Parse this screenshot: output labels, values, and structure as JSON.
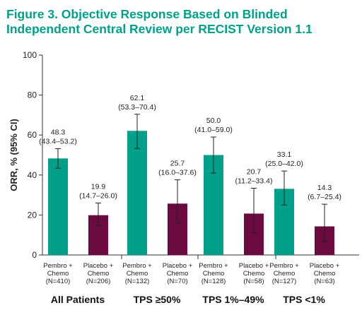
{
  "chart_data": {
    "type": "bar",
    "title": "Figure 3. Objective Response Based on Blinded Independent Central Review per RECIST Version 1.1",
    "ylabel": "ORR, % (95% CI)",
    "ylim": [
      0,
      100
    ],
    "yticks": [
      "0",
      "20",
      "40",
      "60",
      "80",
      "100"
    ],
    "colors": {
      "Pembro + Chemo": "#00a08a",
      "Placebo + Chemo": "#6b0a3e"
    },
    "categories": [
      "All Patients",
      "TPS ≥50%",
      "TPS 1%–49%",
      "TPS <1%"
    ],
    "series": [
      {
        "name": "Pembro + Chemo",
        "values": [
          48.3,
          62.1,
          50.0,
          33.1
        ],
        "value_labels": [
          "48.3",
          "62.1",
          "50.0",
          "33.1"
        ],
        "ci": [
          [
            43.4,
            53.2
          ],
          [
            53.3,
            70.4
          ],
          [
            41.0,
            59.0
          ],
          [
            25.0,
            42.0
          ]
        ],
        "ci_labels": [
          "(43.4–53.2)",
          "(53.3–70.4)",
          "(41.0–59.0)",
          "(25.0–42.0)"
        ],
        "arm_labels": [
          [
            "Pembro +",
            "Chemo",
            "(N=410)"
          ],
          [
            "Pembro +",
            "Chemo",
            "(N=132)"
          ],
          [
            "Pembro +",
            "Chemo",
            "(N=128)"
          ],
          [
            "Pembro +",
            "Chemo",
            "(N=127)"
          ]
        ]
      },
      {
        "name": "Placebo + Chemo",
        "values": [
          19.9,
          25.7,
          20.7,
          14.3
        ],
        "value_labels": [
          "19.9",
          "25.7",
          "20.7",
          "14.3"
        ],
        "ci": [
          [
            14.7,
            26.0
          ],
          [
            16.0,
            37.6
          ],
          [
            11.2,
            33.4
          ],
          [
            6.7,
            25.4
          ]
        ],
        "ci_labels": [
          "(14.7–26.0)",
          "(16.0–37.6)",
          "(11.2–33.4)",
          "(6.7–25.4)"
        ],
        "arm_labels": [
          [
            "Placebo +",
            "Chemo",
            "(N=206)"
          ],
          [
            "Placebo +",
            "Chemo",
            "(N=70)"
          ],
          [
            "Placebo +",
            "Chemo",
            "(N=58)"
          ],
          [
            "Placebo +",
            "Chemo",
            "(N=63)"
          ]
        ]
      }
    ]
  }
}
